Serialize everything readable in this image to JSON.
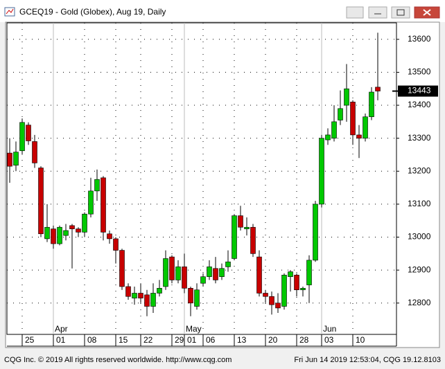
{
  "window": {
    "title": "GCEQ19 - Gold (Globex), Aug 19, Daily",
    "footer_left": "CQG Inc. © 2019 All rights reserved worldwide. http://www.cqg.com",
    "footer_right": "Fri Jun 14 2019 12:53:04, CQG 19.12.8103"
  },
  "chart_data": {
    "type": "candlestick",
    "categories": [
      null,
      null,
      "25",
      null,
      null,
      null,
      null,
      "01",
      null,
      null,
      null,
      null,
      "08",
      null,
      null,
      null,
      null,
      "15",
      null,
      null,
      null,
      "22",
      null,
      null,
      null,
      null,
      "29",
      null,
      "01",
      null,
      null,
      "06",
      null,
      null,
      null,
      null,
      "13",
      null,
      null,
      null,
      null,
      "20",
      null,
      null,
      null,
      null,
      "28",
      null,
      null,
      null,
      "03",
      null,
      null,
      null,
      null,
      "10",
      null,
      null,
      null,
      null
    ],
    "month_categories": [
      null,
      null,
      null,
      null,
      null,
      null,
      null,
      "Apr",
      null,
      null,
      null,
      null,
      null,
      null,
      null,
      null,
      null,
      null,
      null,
      null,
      null,
      null,
      null,
      null,
      null,
      null,
      null,
      null,
      "May",
      null,
      null,
      null,
      null,
      null,
      null,
      null,
      null,
      null,
      null,
      null,
      null,
      null,
      null,
      null,
      null,
      null,
      null,
      null,
      null,
      null,
      "Jun",
      null,
      null,
      null,
      null,
      null,
      null,
      null,
      null,
      null
    ],
    "open": [
      13255,
      13218,
      13262,
      13340,
      13290,
      13210,
      12995,
      13025,
      12980,
      13005,
      13035,
      13025,
      13015,
      13070,
      13140,
      13180,
      13010,
      12995,
      12960,
      12850,
      12815,
      12830,
      12825,
      12790,
      12830,
      12850,
      12940,
      12870,
      12910,
      12845,
      12790,
      12860,
      12880,
      12905,
      12880,
      12910,
      12935,
      13065,
      13025,
      13030,
      12940,
      12830,
      12820,
      12800,
      12790,
      12880,
      12885,
      12840,
      12855,
      12930,
      13100,
      13295,
      13300,
      13355,
      13400,
      13410,
      13310,
      13300,
      13365,
      13455
    ],
    "high": [
      13300,
      13290,
      13360,
      13348,
      13310,
      13215,
      13100,
      13035,
      13035,
      13040,
      13040,
      13030,
      13075,
      13180,
      13205,
      13185,
      13020,
      13000,
      12965,
      12860,
      12850,
      12860,
      12840,
      12860,
      12870,
      12960,
      12945,
      12930,
      12950,
      12850,
      12860,
      12890,
      12930,
      12940,
      12920,
      12960,
      13070,
      13095,
      13060,
      13040,
      12960,
      12840,
      12835,
      12830,
      12890,
      12900,
      12890,
      12850,
      12945,
      13110,
      13310,
      13330,
      13400,
      13445,
      13525,
      13415,
      13340,
      13375,
      13455,
      13620
    ],
    "low": [
      13165,
      13200,
      13250,
      13280,
      13210,
      13000,
      12985,
      12965,
      12975,
      12990,
      12905,
      13000,
      13000,
      13060,
      13110,
      12990,
      12980,
      12920,
      12840,
      12810,
      12795,
      12800,
      12760,
      12770,
      12820,
      12840,
      12860,
      12860,
      12830,
      12760,
      12780,
      12850,
      12870,
      12860,
      12870,
      12895,
      12930,
      13020,
      13005,
      12940,
      12820,
      12800,
      12765,
      12770,
      12780,
      12835,
      12820,
      12820,
      12800,
      12925,
      13090,
      13280,
      13290,
      13340,
      13350,
      13280,
      13240,
      13290,
      13355,
      13415
    ],
    "close": [
      13215,
      13258,
      13348,
      13292,
      13225,
      13010,
      13030,
      12980,
      13030,
      13020,
      13025,
      13015,
      13070,
      13140,
      13175,
      13015,
      12995,
      12960,
      12850,
      12820,
      12830,
      12815,
      12790,
      12830,
      12845,
      12935,
      12870,
      12910,
      12845,
      12800,
      12840,
      12880,
      12910,
      12870,
      12905,
      12925,
      13065,
      13030,
      13030,
      12950,
      12830,
      12820,
      12795,
      12785,
      12885,
      12895,
      12840,
      12845,
      12930,
      13100,
      13300,
      13310,
      13350,
      13390,
      13450,
      13310,
      13300,
      13365,
      13440,
      13443
    ],
    "up_color": "#00c800",
    "down_color": "#c80000",
    "ylim": [
      12705,
      13650
    ],
    "yticks": [
      12800,
      12900,
      13000,
      13100,
      13200,
      13300,
      13400,
      13500,
      13600
    ],
    "grid": true
  }
}
